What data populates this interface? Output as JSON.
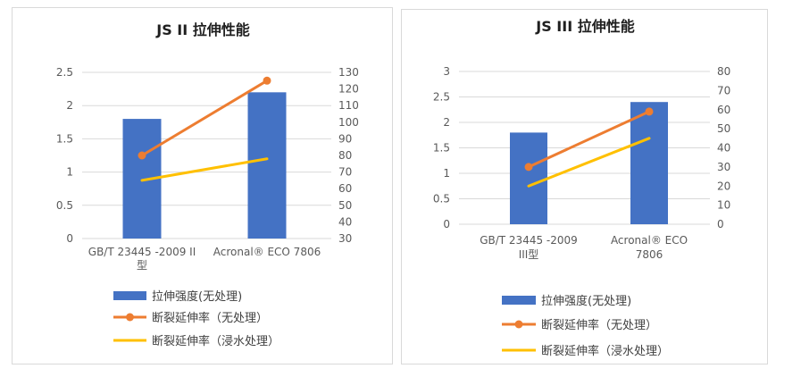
{
  "chart_data": [
    {
      "type": "bar",
      "title": "JS II 拉伸性能",
      "categories": [
        [
          "GB/T 23445 -2009 II",
          "型"
        ],
        [
          "Acronal® ECO 7806"
        ]
      ],
      "y_left": {
        "min": 0,
        "max": 2.5,
        "step": 0.5,
        "ticks": [
          "0",
          "0.5",
          "1",
          "1.5",
          "2",
          "2.5"
        ]
      },
      "y_right": {
        "min": 30,
        "max": 130,
        "step": 10,
        "ticks": [
          "30",
          "40",
          "50",
          "60",
          "70",
          "80",
          "90",
          "100",
          "110",
          "120",
          "130"
        ]
      },
      "grid": true,
      "legend_position": "bottom",
      "series": [
        {
          "name": "拉伸强度(无处理)",
          "type": "bar",
          "axis": "left",
          "color": "#4472c4",
          "values": [
            1.8,
            2.2
          ]
        },
        {
          "name": "断裂延伸率（无处理）",
          "type": "line",
          "axis": "right",
          "color": "#ed7d31",
          "marker": true,
          "values": [
            80,
            125
          ]
        },
        {
          "name": "断裂延伸率（浸水处理）",
          "type": "line",
          "axis": "right",
          "color": "#ffc000",
          "marker": false,
          "values": [
            65,
            78
          ]
        }
      ]
    },
    {
      "type": "bar",
      "title": "JS III 拉伸性能",
      "categories": [
        [
          "GB/T 23445 -2009",
          "III型"
        ],
        [
          "Acronal® ECO",
          "7806"
        ]
      ],
      "y_left": {
        "min": 0,
        "max": 3,
        "step": 0.5,
        "ticks": [
          "0",
          "0.5",
          "1",
          "1.5",
          "2",
          "2.5",
          "3"
        ]
      },
      "y_right": {
        "min": 0,
        "max": 80,
        "step": 10,
        "ticks": [
          "0",
          "10",
          "20",
          "30",
          "40",
          "50",
          "60",
          "70",
          "80"
        ]
      },
      "grid": true,
      "legend_position": "bottom",
      "series": [
        {
          "name": "拉伸强度(无处理)",
          "type": "bar",
          "axis": "left",
          "color": "#4472c4",
          "values": [
            1.8,
            2.4
          ]
        },
        {
          "name": "断裂延伸率（无处理）",
          "type": "line",
          "axis": "right",
          "color": "#ed7d31",
          "marker": true,
          "values": [
            30,
            59
          ]
        },
        {
          "name": "断裂延伸率（浸水处理）",
          "type": "line",
          "axis": "right",
          "color": "#ffc000",
          "marker": false,
          "values": [
            20,
            45
          ]
        }
      ]
    }
  ]
}
